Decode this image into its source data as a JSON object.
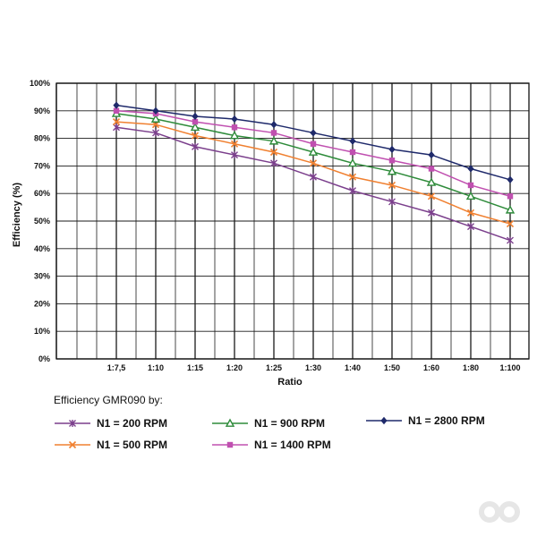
{
  "chart_data": {
    "type": "line",
    "title": "",
    "xlabel": "Ratio",
    "ylabel": "Efficiency (%)",
    "categories": [
      "1:7,5",
      "1:10",
      "1:15",
      "1:20",
      "1:25",
      "1:30",
      "1:40",
      "1:50",
      "1:60",
      "1:80",
      "1:100"
    ],
    "y_ticks": [
      "0%",
      "10%",
      "20%",
      "30%",
      "40%",
      "50%",
      "60%",
      "70%",
      "80%",
      "90%",
      "100%"
    ],
    "ylim": [
      0,
      100
    ],
    "grid": true,
    "legend_title": "Efficiency GMR090 by:",
    "legend_position": "bottom",
    "series": [
      {
        "name": "N1 = 200  RPM",
        "color": "#7b3f8c",
        "marker": "asterisk",
        "values": [
          84,
          82,
          77,
          74,
          71,
          66,
          61,
          57,
          53,
          48,
          43
        ]
      },
      {
        "name": "N1 = 500  RPM",
        "color": "#f08030",
        "marker": "x",
        "values": [
          86,
          85,
          81,
          78,
          75,
          71,
          66,
          63,
          59,
          53,
          49
        ]
      },
      {
        "name": "N1 = 900  RPM",
        "color": "#2e8b3a",
        "marker": "triangle",
        "values": [
          89,
          87,
          84,
          81,
          79,
          75,
          71,
          68,
          64,
          59,
          54
        ]
      },
      {
        "name": "N1 = 1400  RPM",
        "color": "#c050b0",
        "marker": "square",
        "values": [
          90,
          89,
          86,
          84,
          82,
          78,
          75,
          72,
          69,
          63,
          59
        ]
      },
      {
        "name": "N1 = 2800  RPM",
        "color": "#1f2a6b",
        "marker": "diamond",
        "values": [
          92,
          90,
          88,
          87,
          85,
          82,
          79,
          76,
          74,
          69,
          65
        ]
      }
    ]
  }
}
